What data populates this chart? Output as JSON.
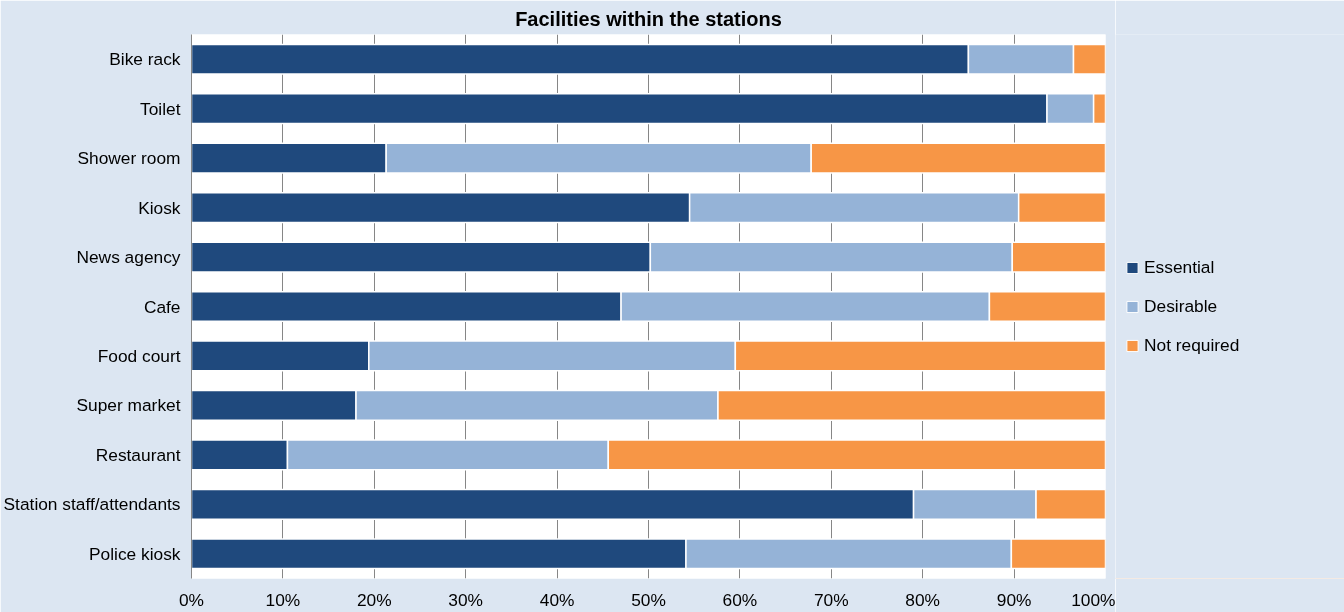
{
  "chart_data": {
    "type": "bar",
    "orientation": "horizontal",
    "stacked": true,
    "title": "Facilities within the stations",
    "categories": [
      "Bike rack",
      "Toilet",
      "Shower room",
      "Kiosk",
      "News agency",
      "Cafe",
      "Food court",
      "Super market",
      "Restaurant",
      "Station staff/attendants",
      "Police kiosk"
    ],
    "series": [
      {
        "name": "Essential",
        "color": "#1f497d",
        "values": [
          85,
          93.6,
          21.3,
          54.5,
          50.2,
          47,
          19.4,
          18,
          10.5,
          79,
          54.1
        ]
      },
      {
        "name": "Desirable",
        "color": "#95b3d7",
        "values": [
          11.5,
          5.1,
          46.5,
          36,
          39.6,
          40.3,
          40.1,
          39.6,
          35.1,
          13.4,
          35.6
        ]
      },
      {
        "name": "Not required",
        "color": "#f79646",
        "values": [
          3.5,
          1.3,
          32.2,
          9.5,
          10.2,
          12.7,
          40.5,
          42.4,
          54.4,
          7.6,
          10.3
        ]
      }
    ],
    "xlim": [
      0,
      100
    ],
    "xticks": [
      {
        "value": 0,
        "label": "0%"
      },
      {
        "value": 10,
        "label": "10%"
      },
      {
        "value": 20,
        "label": "20%"
      },
      {
        "value": 30,
        "label": "30%"
      },
      {
        "value": 40,
        "label": "40%"
      },
      {
        "value": 50,
        "label": "50%"
      },
      {
        "value": 60,
        "label": "60%"
      },
      {
        "value": 70,
        "label": "70%"
      },
      {
        "value": 80,
        "label": "80%"
      },
      {
        "value": 90,
        "label": "90%"
      },
      {
        "value": 100,
        "label": "100%"
      }
    ],
    "grid": "x",
    "legend": "right"
  }
}
